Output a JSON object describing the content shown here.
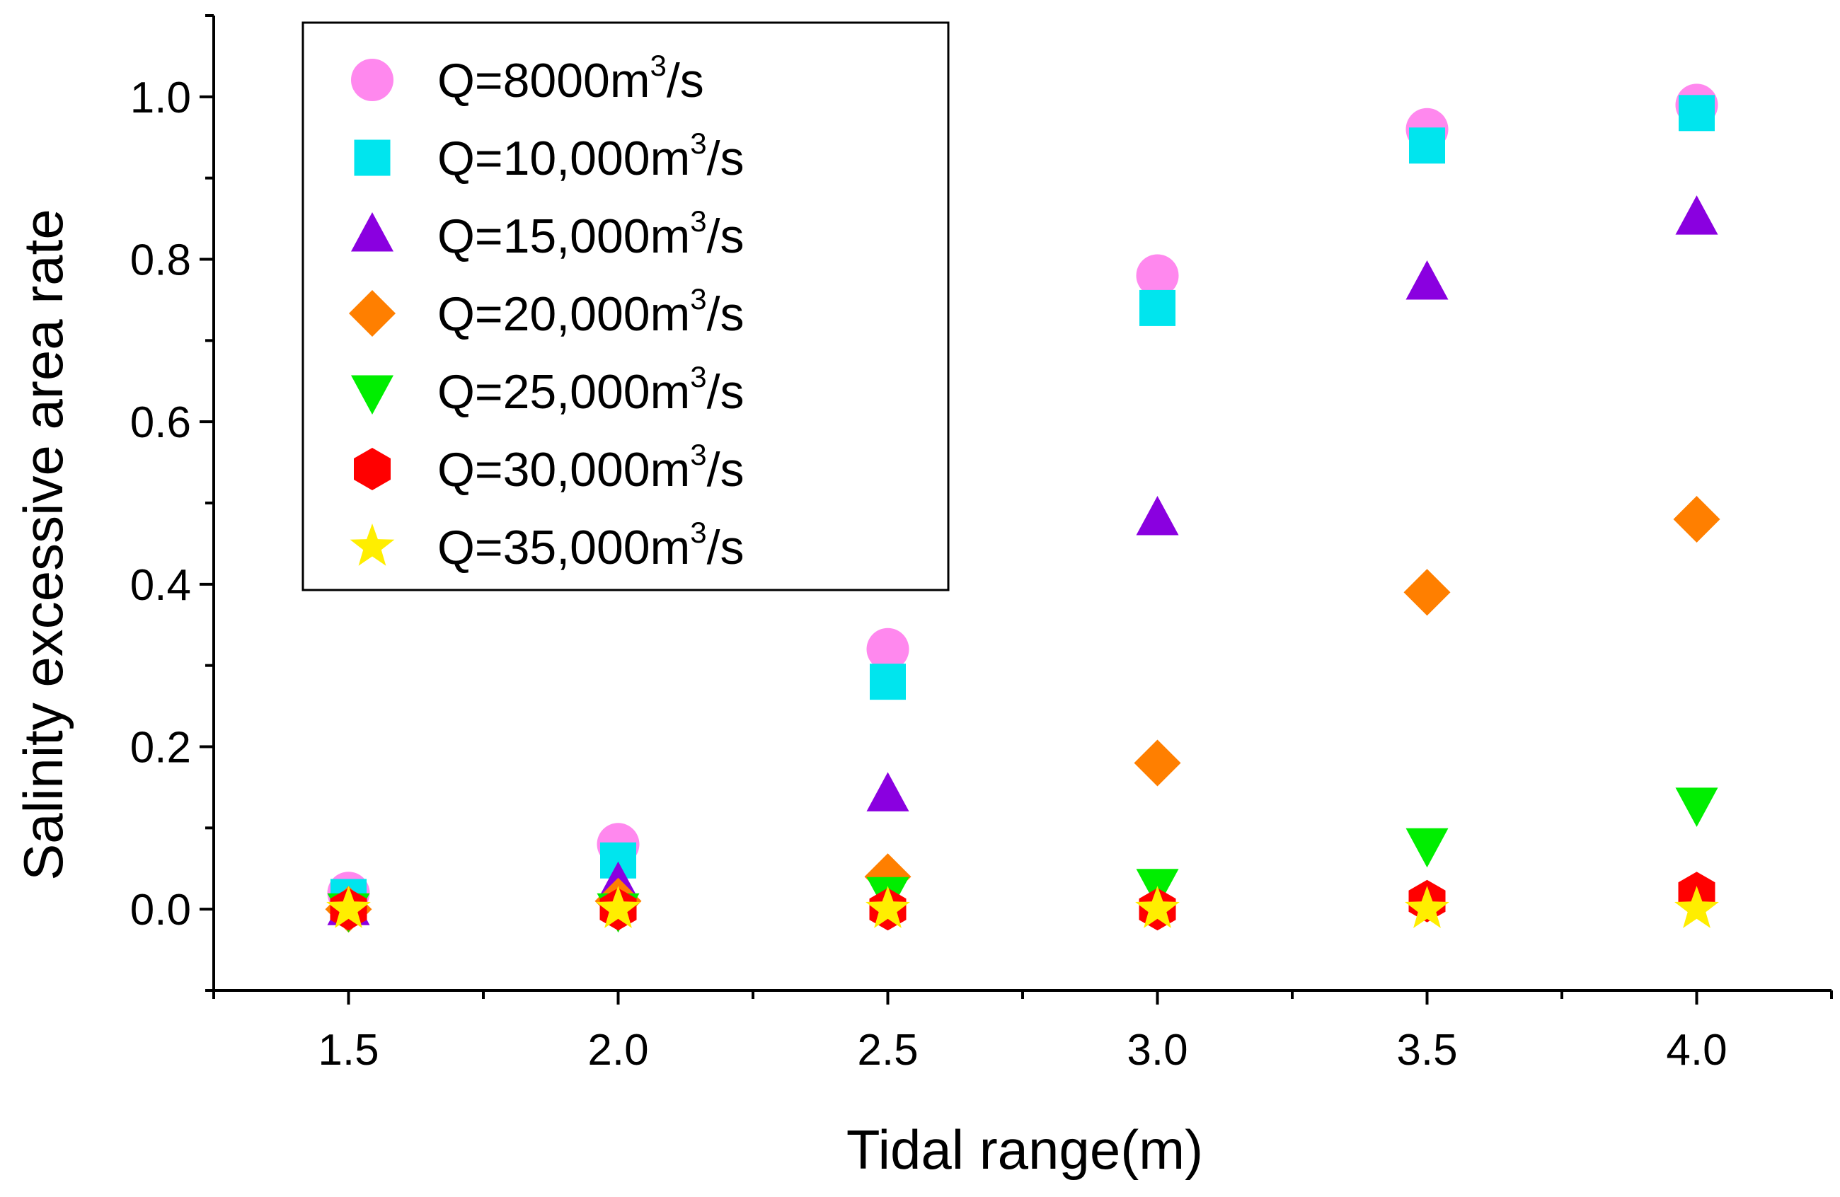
{
  "chart_data": {
    "type": "scatter",
    "xlabel": "Tidal range(m)",
    "ylabel": "Salinity excessive area rate",
    "xlim": [
      1.25,
      4.25
    ],
    "ylim": [
      -0.1,
      1.1
    ],
    "xticks": [
      "1.5",
      "2.0",
      "2.5",
      "3.0",
      "3.5",
      "4.0"
    ],
    "yticks": [
      "0.0",
      "0.2",
      "0.4",
      "0.6",
      "0.8",
      "1.0"
    ],
    "grid": false,
    "legend": "top-left",
    "x": [
      1.5,
      2.0,
      2.5,
      3.0,
      3.5,
      4.0
    ],
    "series": [
      {
        "name_prefix": "Q=8000m",
        "name_sup": "3",
        "name_suffix": "/s",
        "marker": "circle",
        "color": "#ff88ee",
        "values": [
          0.02,
          0.08,
          0.32,
          0.78,
          0.96,
          0.99
        ]
      },
      {
        "name_prefix": "Q=10,000m",
        "name_sup": "3",
        "name_suffix": "/s",
        "marker": "square",
        "color": "#00e5ee",
        "values": [
          0.015,
          0.06,
          0.28,
          0.74,
          0.94,
          0.98
        ]
      },
      {
        "name_prefix": "Q=15,000m",
        "name_sup": "3",
        "name_suffix": "/s",
        "marker": "triangle-up",
        "color": "#8a00e0",
        "values": [
          0.0,
          0.03,
          0.14,
          0.48,
          0.77,
          0.85
        ]
      },
      {
        "name_prefix": "Q=20,000m",
        "name_sup": "3",
        "name_suffix": "/s",
        "marker": "diamond",
        "color": "#ff7f00",
        "values": [
          0.0,
          0.01,
          0.04,
          0.18,
          0.39,
          0.48
        ]
      },
      {
        "name_prefix": "Q=25,000m",
        "name_sup": "3",
        "name_suffix": "/s",
        "marker": "triangle-down",
        "color": "#00ee00",
        "values": [
          0.0,
          0.0,
          0.02,
          0.03,
          0.08,
          0.13
        ]
      },
      {
        "name_prefix": "Q=30,000m",
        "name_sup": "3",
        "name_suffix": "/s",
        "marker": "hexagon",
        "color": "#ff0000",
        "values": [
          0.0,
          0.0,
          0.0,
          0.0,
          0.01,
          0.02
        ]
      },
      {
        "name_prefix": "Q=35,000m",
        "name_sup": "3",
        "name_suffix": "/s",
        "marker": "star",
        "color": "#ffee00",
        "values": [
          0.0,
          0.0,
          0.0,
          0.0,
          0.0,
          0.0
        ]
      }
    ]
  }
}
